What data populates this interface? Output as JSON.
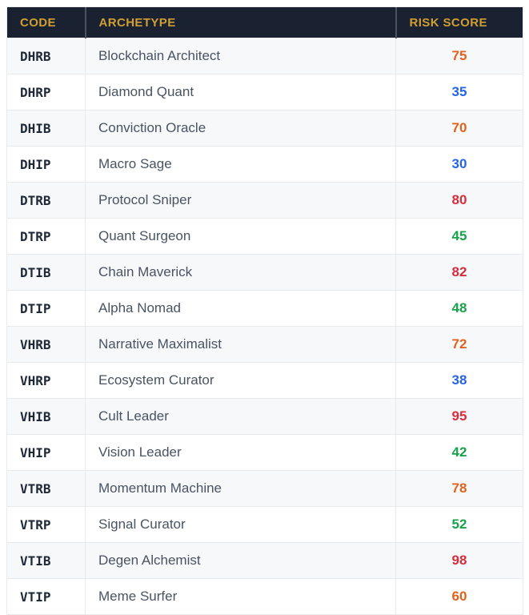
{
  "colors": {
    "header_bg": "#1a2232",
    "header_text": "#cf9f33",
    "row_stripe": "#f7f8fa",
    "border": "#e8eaee",
    "code_text": "#1f2937",
    "archetype_text": "#4a5362",
    "risk_orange": "#e3611d",
    "risk_blue": "#2563eb",
    "risk_green": "#16a34a",
    "risk_red": "#d92d3c"
  },
  "chart_data": {
    "type": "table",
    "title": "",
    "columns": [
      "CODE",
      "ARCHETYPE",
      "RISK SCORE"
    ],
    "rows": [
      {
        "code": "DHRB",
        "archetype": "Blockchain Architect",
        "risk_score": 75,
        "risk_color": "orange"
      },
      {
        "code": "DHRP",
        "archetype": "Diamond Quant",
        "risk_score": 35,
        "risk_color": "blue"
      },
      {
        "code": "DHIB",
        "archetype": "Conviction Oracle",
        "risk_score": 70,
        "risk_color": "orange"
      },
      {
        "code": "DHIP",
        "archetype": "Macro Sage",
        "risk_score": 30,
        "risk_color": "blue"
      },
      {
        "code": "DTRB",
        "archetype": "Protocol Sniper",
        "risk_score": 80,
        "risk_color": "red"
      },
      {
        "code": "DTRP",
        "archetype": "Quant Surgeon",
        "risk_score": 45,
        "risk_color": "green"
      },
      {
        "code": "DTIB",
        "archetype": "Chain Maverick",
        "risk_score": 82,
        "risk_color": "red"
      },
      {
        "code": "DTIP",
        "archetype": "Alpha Nomad",
        "risk_score": 48,
        "risk_color": "green"
      },
      {
        "code": "VHRB",
        "archetype": "Narrative Maximalist",
        "risk_score": 72,
        "risk_color": "orange"
      },
      {
        "code": "VHRP",
        "archetype": "Ecosystem Curator",
        "risk_score": 38,
        "risk_color": "blue"
      },
      {
        "code": "VHIB",
        "archetype": "Cult Leader",
        "risk_score": 95,
        "risk_color": "red"
      },
      {
        "code": "VHIP",
        "archetype": "Vision Leader",
        "risk_score": 42,
        "risk_color": "green"
      },
      {
        "code": "VTRB",
        "archetype": "Momentum Machine",
        "risk_score": 78,
        "risk_color": "orange"
      },
      {
        "code": "VTRP",
        "archetype": "Signal Curator",
        "risk_score": 52,
        "risk_color": "green"
      },
      {
        "code": "VTIB",
        "archetype": "Degen Alchemist",
        "risk_score": 98,
        "risk_color": "red"
      },
      {
        "code": "VTIP",
        "archetype": "Meme Surfer",
        "risk_score": 60,
        "risk_color": "orange"
      }
    ]
  }
}
